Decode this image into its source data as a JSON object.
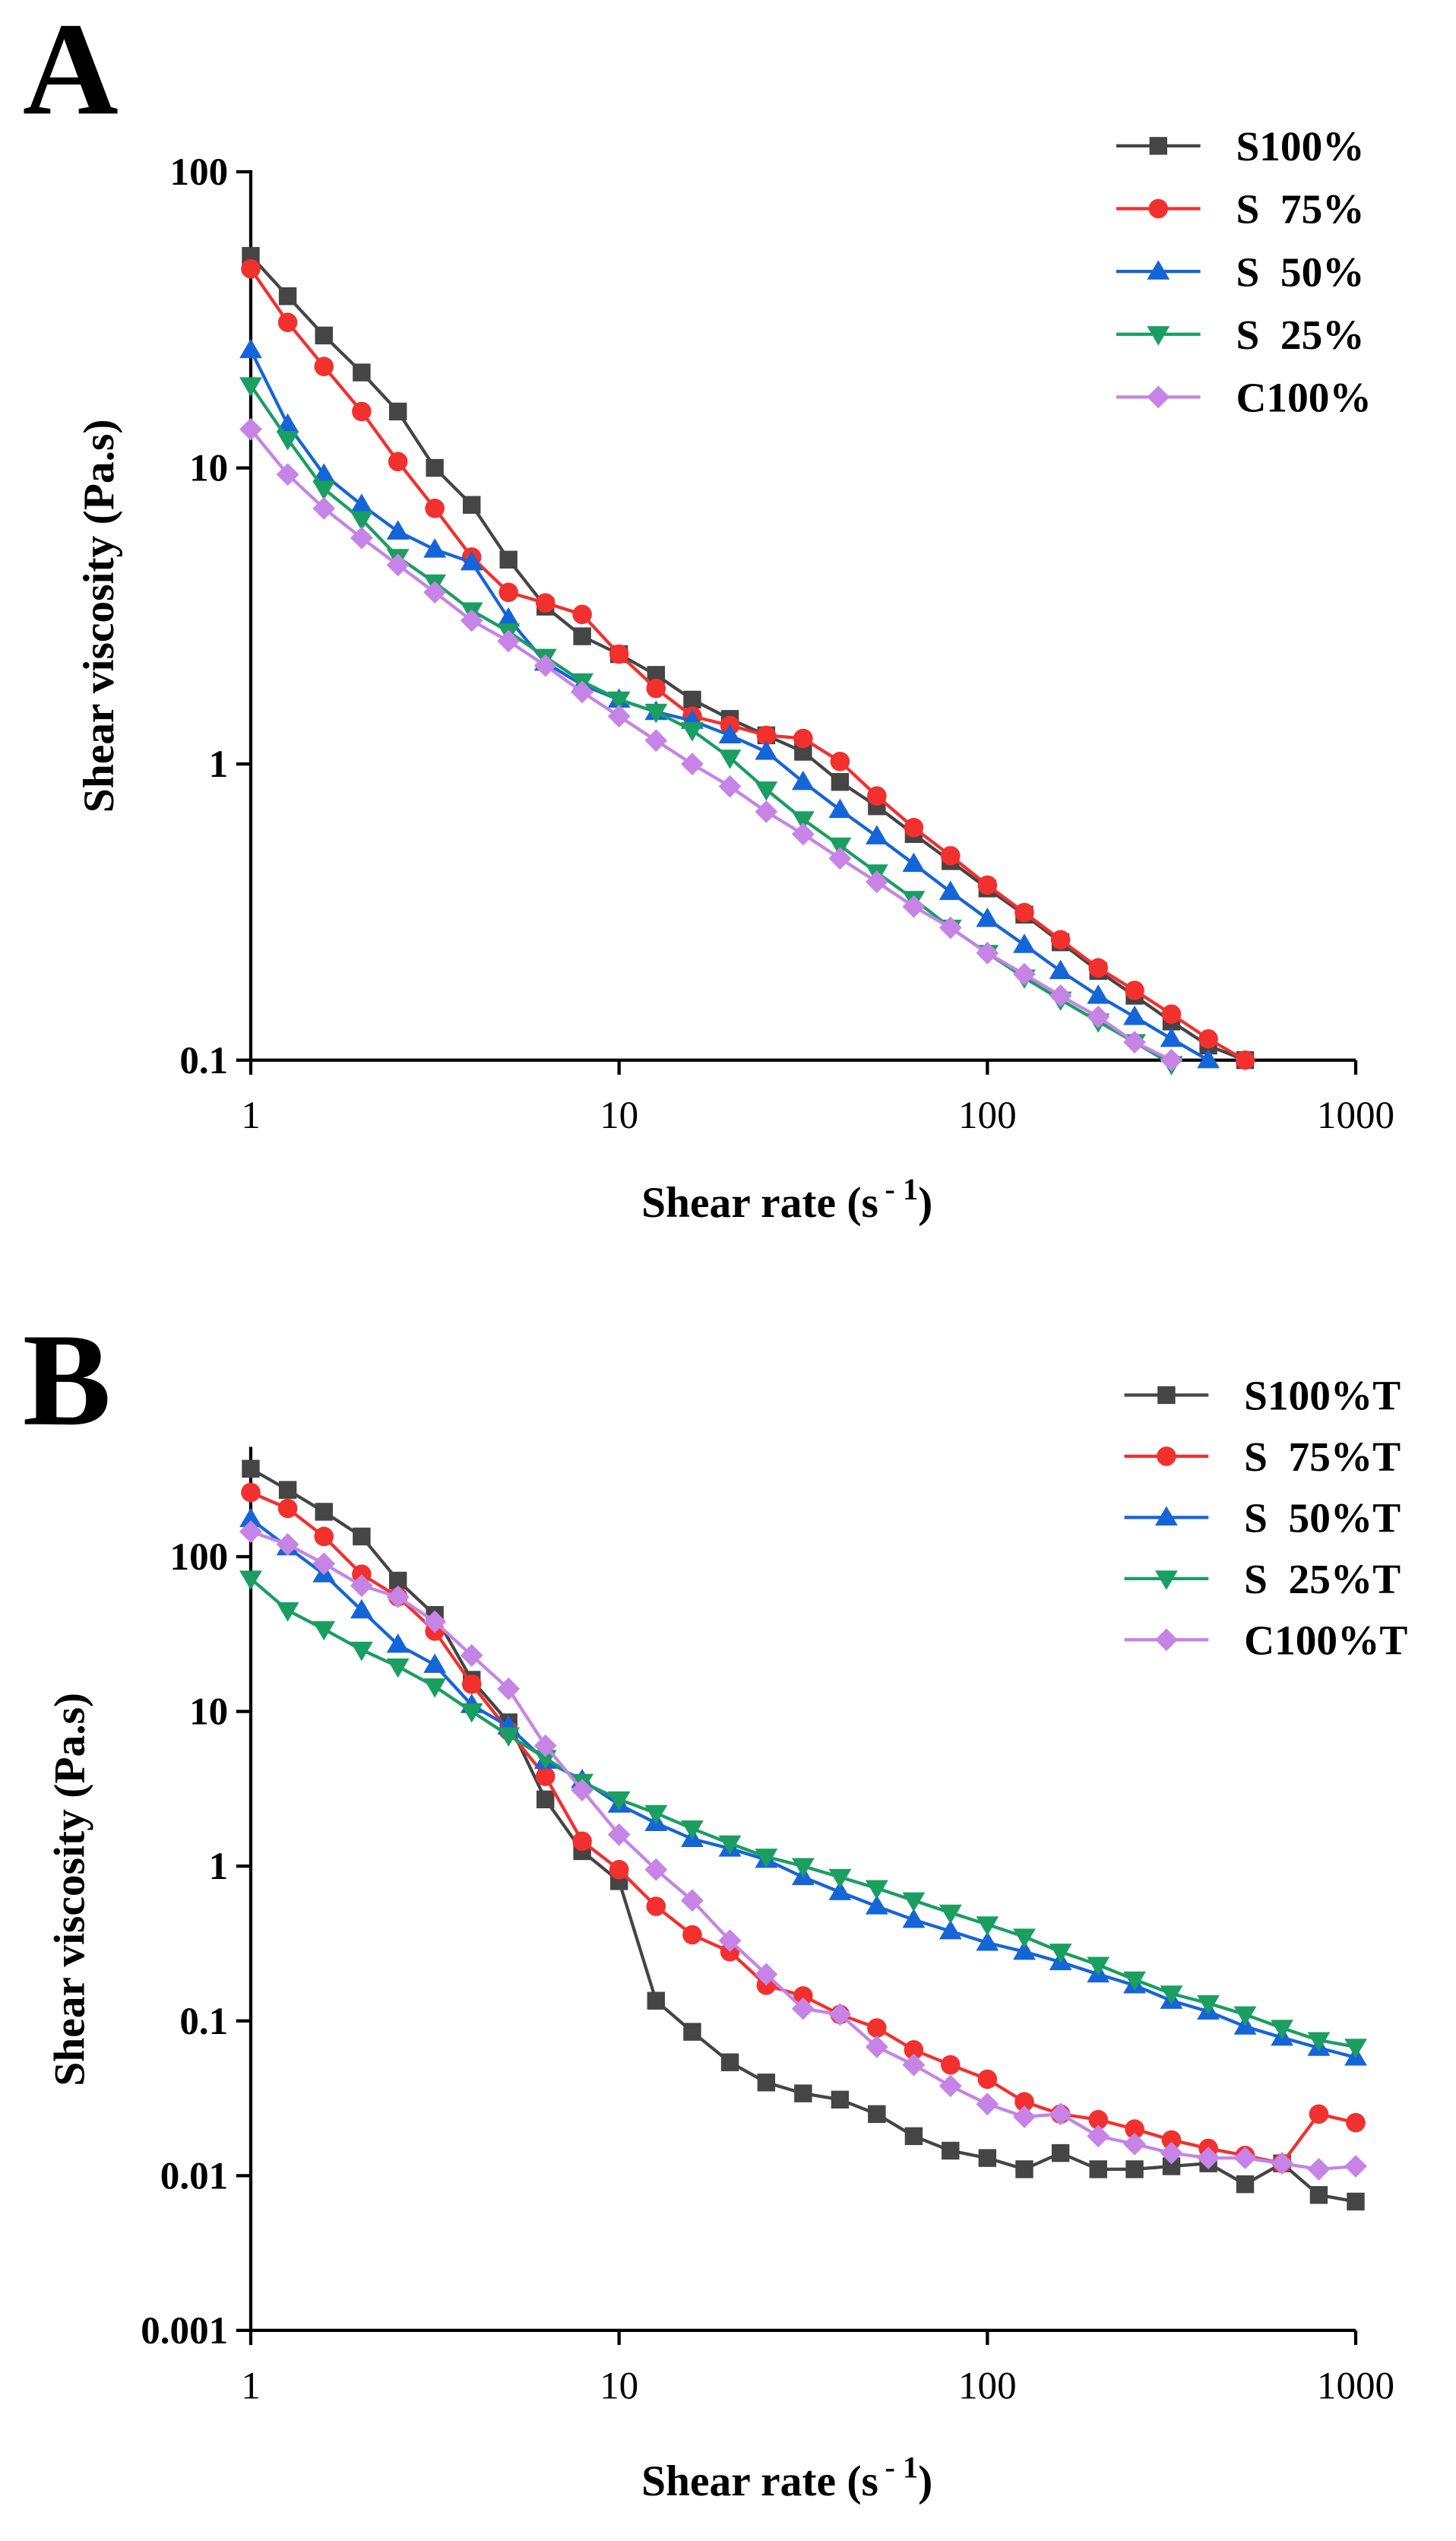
{
  "chart_data": [
    {
      "type": "line",
      "panel_label": "A",
      "log_x": true,
      "log_y": true,
      "xlabel_parts": [
        "Shear rate (s",
        "- 1",
        ")"
      ],
      "ylabel": "Shear viscosity (Pa.s)",
      "xlim": [
        1,
        1000
      ],
      "xticks": [
        1,
        10,
        100,
        1000
      ],
      "ylim": [
        0.1,
        100
      ],
      "yticks": [
        0.1,
        1,
        10,
        100
      ],
      "legend": "upper right",
      "x": [
        1,
        1.26,
        1.58,
        2,
        2.51,
        3.16,
        3.98,
        5.01,
        6.31,
        7.94,
        10,
        12.6,
        15.8,
        20,
        25.1,
        31.6,
        39.8,
        50.1,
        63.1,
        79.4,
        100,
        126,
        158,
        200,
        251,
        316,
        398,
        501
      ],
      "series": [
        {
          "name": "S100%",
          "color": "#454545",
          "marker": "square",
          "values": [
            52,
            38,
            28,
            21,
            15.5,
            10,
            7.5,
            4.9,
            3.4,
            2.7,
            2.35,
            2.0,
            1.65,
            1.42,
            1.25,
            1.1,
            0.87,
            0.72,
            0.58,
            0.47,
            0.38,
            0.31,
            0.25,
            0.2,
            0.165,
            0.135,
            0.112,
            0.1
          ]
        },
        {
          "name": "S  75%",
          "color": "#f2302e",
          "marker": "circle",
          "values": [
            47,
            31,
            22,
            15.5,
            10.5,
            7.3,
            5.0,
            3.8,
            3.5,
            3.2,
            2.35,
            1.8,
            1.45,
            1.35,
            1.25,
            1.22,
            1.02,
            0.78,
            0.61,
            0.49,
            0.39,
            0.315,
            0.255,
            0.205,
            0.172,
            0.143,
            0.118,
            0.1
          ]
        },
        {
          "name": "S  50%",
          "color": "#1565d8",
          "marker": "triangle-up",
          "values": [
            25,
            14,
            9.5,
            7.5,
            6.1,
            5.3,
            4.8,
            3.1,
            2.2,
            1.85,
            1.65,
            1.5,
            1.4,
            1.25,
            1.1,
            0.87,
            0.7,
            0.57,
            0.46,
            0.37,
            0.3,
            0.245,
            0.2,
            0.165,
            0.14,
            0.118,
            0.1,
            null
          ]
        },
        {
          "name": "S  25%",
          "color": "#1a9e62",
          "marker": "triangle-down",
          "values": [
            19,
            12.5,
            8.5,
            6.7,
            5.0,
            4.1,
            3.3,
            2.8,
            2.3,
            1.9,
            1.65,
            1.5,
            1.3,
            1.05,
            0.82,
            0.65,
            0.53,
            0.43,
            0.35,
            0.28,
            0.23,
            0.19,
            0.16,
            0.135,
            0.115,
            0.097,
            null,
            null
          ]
        },
        {
          "name": "C100%",
          "color": "#c584e6",
          "marker": "diamond",
          "values": [
            13.5,
            9.5,
            7.3,
            5.8,
            4.7,
            3.8,
            3.05,
            2.6,
            2.15,
            1.75,
            1.45,
            1.2,
            1.0,
            0.84,
            0.69,
            0.58,
            0.48,
            0.4,
            0.33,
            0.28,
            0.23,
            0.195,
            0.165,
            0.14,
            0.115,
            0.1,
            null,
            null
          ]
        }
      ]
    },
    {
      "type": "line",
      "panel_label": "B",
      "log_x": true,
      "log_y": true,
      "xlabel_parts": [
        "Shear rate (s",
        "- 1",
        ")"
      ],
      "ylabel": "Shear viscosity (Pa.s)",
      "xlim": [
        1,
        1000
      ],
      "xticks": [
        1,
        10,
        100,
        1000
      ],
      "ylim": [
        0.001,
        500
      ],
      "yticks": [
        0.001,
        0.01,
        0.1,
        1,
        10,
        100
      ],
      "legend": "upper right",
      "x": [
        1,
        1.26,
        1.58,
        2,
        2.51,
        3.16,
        3.98,
        5.01,
        6.31,
        7.94,
        10,
        12.6,
        15.8,
        20,
        25.1,
        31.6,
        39.8,
        50.1,
        63.1,
        79.4,
        100,
        126,
        158,
        200,
        251,
        316,
        398,
        501,
        631,
        794,
        1000
      ],
      "series": [
        {
          "name": "S100%T",
          "color": "#454545",
          "marker": "square",
          "values": [
            370,
            270,
            195,
            135,
            70,
            42,
            16,
            8.5,
            2.7,
            1.25,
            0.8,
            0.135,
            0.085,
            0.054,
            0.04,
            0.034,
            0.031,
            0.025,
            0.018,
            0.0145,
            0.013,
            0.011,
            0.014,
            0.011,
            0.011,
            0.0115,
            0.012,
            0.0088,
            0.012,
            0.0075,
            0.0068
          ]
        },
        {
          "name": "S  75%T",
          "color": "#f2302e",
          "marker": "circle",
          "values": [
            260,
            205,
            135,
            77,
            55,
            33,
            15,
            7.5,
            3.8,
            1.45,
            0.95,
            0.55,
            0.36,
            0.28,
            0.17,
            0.145,
            0.11,
            0.09,
            0.065,
            0.052,
            0.042,
            0.03,
            0.025,
            0.023,
            0.02,
            0.017,
            0.015,
            0.0135,
            0.012,
            0.025,
            0.022
          ]
        },
        {
          "name": "S  50%T",
          "color": "#1565d8",
          "marker": "triangle-up",
          "values": [
            175,
            115,
            77,
            45,
            27,
            20,
            11,
            8,
            4.8,
            3.6,
            2.5,
            1.9,
            1.5,
            1.3,
            1.1,
            0.85,
            0.68,
            0.55,
            0.45,
            0.38,
            0.32,
            0.28,
            0.24,
            0.2,
            0.17,
            0.135,
            0.115,
            0.092,
            0.078,
            0.067,
            0.058
          ]
        },
        {
          "name": "S  25%T",
          "color": "#1a9e62",
          "marker": "triangle-down",
          "values": [
            72,
            45,
            34,
            25,
            19.5,
            14.5,
            10,
            7,
            5,
            3.5,
            2.7,
            2.2,
            1.75,
            1.4,
            1.15,
            1.0,
            0.85,
            0.72,
            0.6,
            0.5,
            0.42,
            0.35,
            0.28,
            0.23,
            0.185,
            0.15,
            0.13,
            0.11,
            0.09,
            0.075,
            0.068
          ]
        },
        {
          "name": "C100%T",
          "color": "#c584e6",
          "marker": "diamond",
          "values": [
            145,
            120,
            90,
            65,
            55,
            38,
            23,
            14,
            6,
            3.1,
            1.6,
            0.95,
            0.6,
            0.33,
            0.2,
            0.12,
            0.11,
            0.068,
            0.052,
            0.038,
            0.029,
            0.024,
            0.025,
            0.018,
            0.016,
            0.014,
            0.013,
            0.013,
            0.012,
            0.011,
            0.0115
          ]
        }
      ]
    }
  ]
}
